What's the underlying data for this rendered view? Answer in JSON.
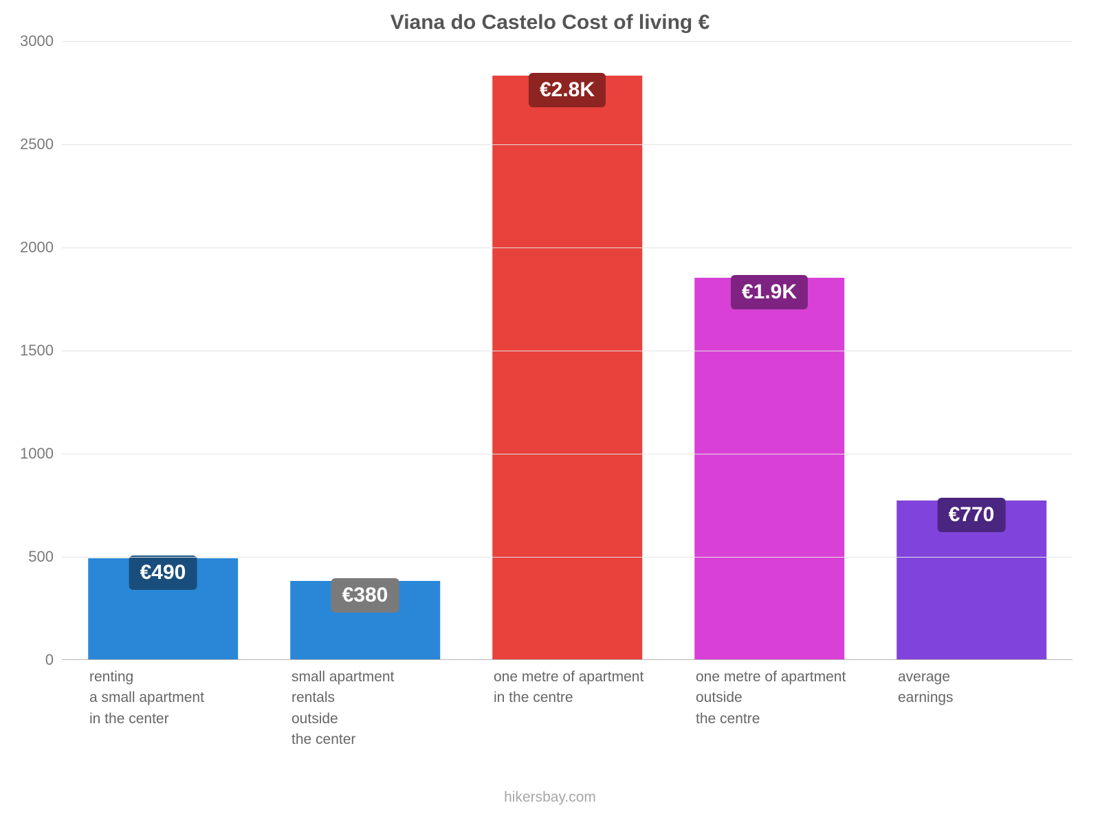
{
  "chart": {
    "type": "bar",
    "title": "Viana do Castelo Cost of living €",
    "title_color": "#555555",
    "title_fontsize": 30,
    "background_color": "#ffffff",
    "grid_color": "#e3e3e3",
    "axis_color": "#b5b5b5",
    "tick_color": "#7a7a7a",
    "xlabel_color": "#666666",
    "label_fontsize": 22,
    "xlabel_fontsize": 21,
    "ylim": [
      0,
      3000
    ],
    "ytick_step": 500,
    "yticks": [
      0,
      500,
      1000,
      1500,
      2000,
      2500,
      3000
    ],
    "bar_width_pct": 74,
    "categories": [
      "renting\na small apartment\nin the center",
      "small apartment\nrentals\noutside\nthe center",
      "one metre of apartment\nin the centre",
      "one metre of apartment\noutside\nthe centre",
      "average\nearnings"
    ],
    "values": [
      490,
      380,
      2830,
      1850,
      770
    ],
    "value_labels": [
      "€490",
      "€380",
      "€2.8K",
      "€1.9K",
      "€770"
    ],
    "bar_colors": [
      "#2a87d8",
      "#2a87d8",
      "#e9413c",
      "#d941d6",
      "#8044dc"
    ],
    "label_bg_colors": [
      "#194e7c",
      "#7a7a7a",
      "#8d2421",
      "#7e2381",
      "#4b2680"
    ],
    "label_text_color": "#ffffff",
    "value_label_fontsize": 30,
    "attribution": "hikersbay.com",
    "attribution_color": "#a7a7a7"
  }
}
